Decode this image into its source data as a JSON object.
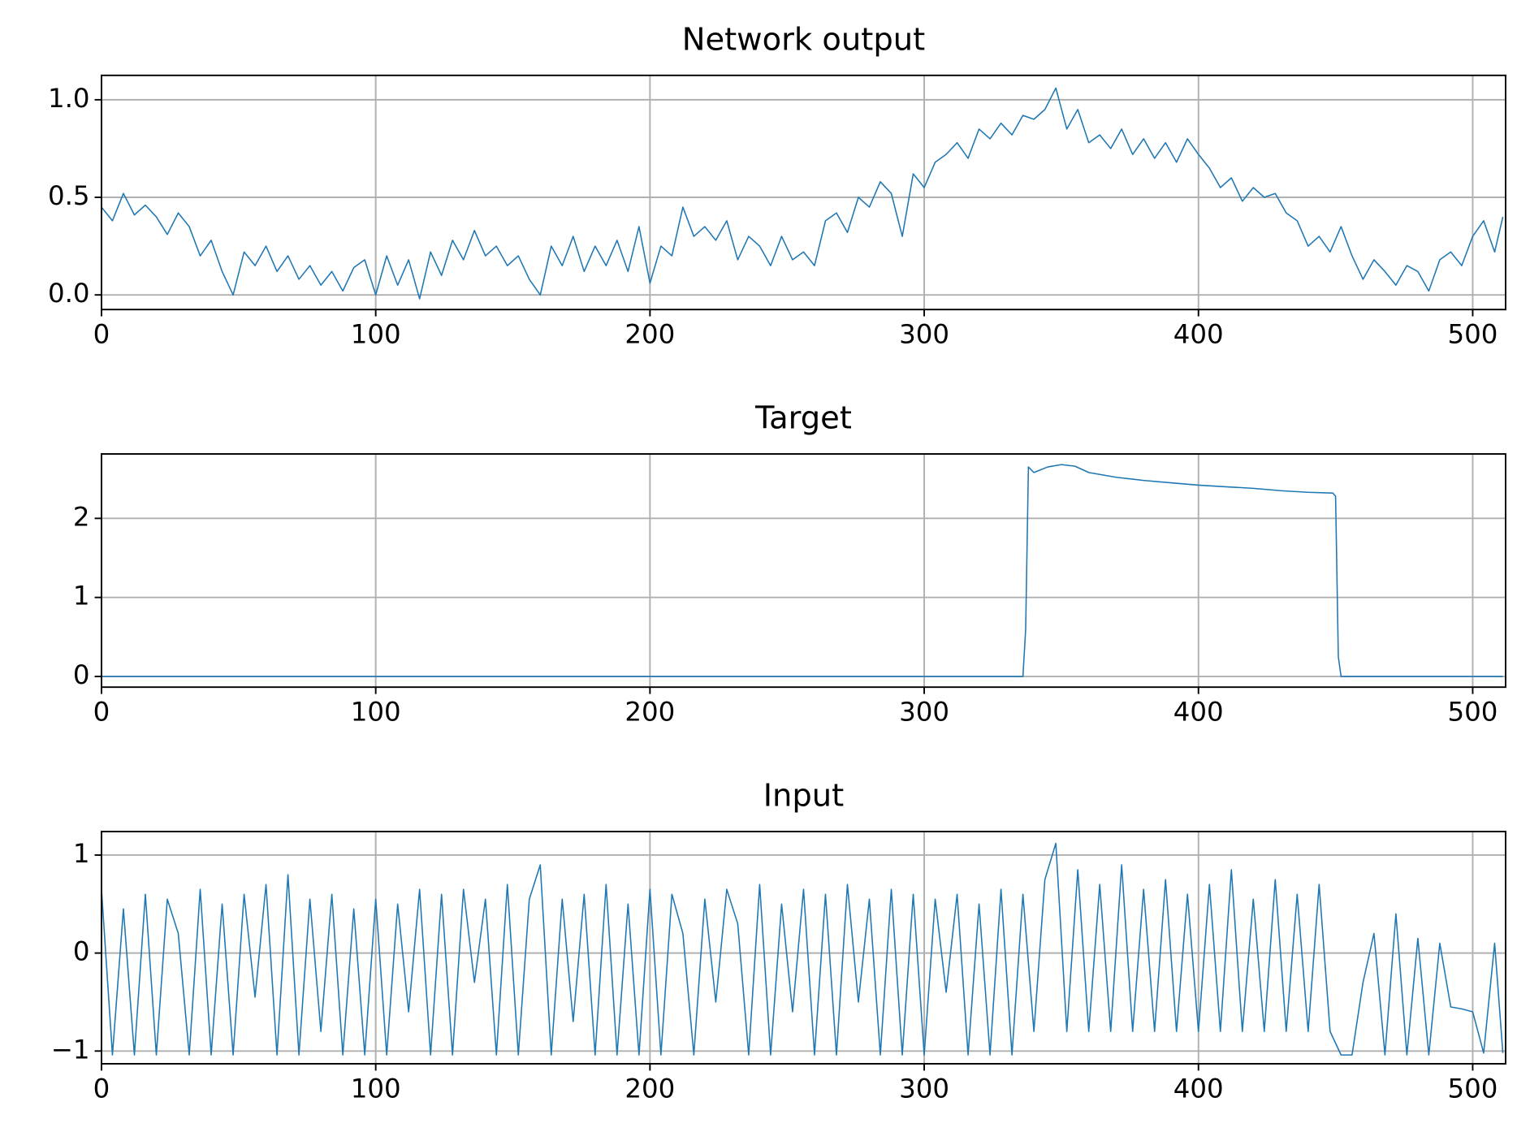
{
  "chart_data": [
    {
      "type": "line",
      "title": "Network output",
      "color": "#1f77b4",
      "grid": true,
      "xlim": [
        0,
        512
      ],
      "xticks": [
        0,
        100,
        200,
        300,
        400,
        500
      ],
      "ylim": [
        -0.075,
        1.125
      ],
      "yticks": [
        {
          "value": 0,
          "label": "0.0"
        },
        {
          "value": 0.5,
          "label": "0.5"
        },
        {
          "value": 1,
          "label": "1.0"
        }
      ],
      "x": [
        0,
        4,
        8,
        12,
        16,
        20,
        24,
        28,
        32,
        36,
        40,
        44,
        48,
        52,
        56,
        60,
        64,
        68,
        72,
        76,
        80,
        84,
        88,
        92,
        96,
        100,
        104,
        108,
        112,
        116,
        120,
        124,
        128,
        132,
        136,
        140,
        144,
        148,
        152,
        156,
        160,
        164,
        168,
        172,
        176,
        180,
        184,
        188,
        192,
        196,
        200,
        204,
        208,
        212,
        216,
        220,
        224,
        228,
        232,
        236,
        240,
        244,
        248,
        252,
        256,
        260,
        264,
        268,
        272,
        276,
        280,
        284,
        288,
        292,
        296,
        300,
        304,
        308,
        312,
        316,
        320,
        324,
        328,
        332,
        336,
        340,
        344,
        348,
        352,
        356,
        360,
        364,
        368,
        372,
        376,
        380,
        384,
        388,
        392,
        396,
        400,
        404,
        408,
        412,
        416,
        420,
        424,
        428,
        432,
        436,
        440,
        444,
        448,
        452,
        456,
        460,
        464,
        468,
        472,
        476,
        480,
        484,
        488,
        492,
        496,
        500,
        504,
        508,
        511
      ],
      "values": [
        0.45,
        0.38,
        0.52,
        0.41,
        0.46,
        0.4,
        0.31,
        0.42,
        0.35,
        0.2,
        0.28,
        0.12,
        0.0,
        0.22,
        0.15,
        0.25,
        0.12,
        0.2,
        0.08,
        0.15,
        0.05,
        0.12,
        0.02,
        0.14,
        0.18,
        0.0,
        0.2,
        0.05,
        0.18,
        -0.02,
        0.22,
        0.1,
        0.28,
        0.18,
        0.33,
        0.2,
        0.25,
        0.15,
        0.2,
        0.08,
        0.0,
        0.25,
        0.15,
        0.3,
        0.12,
        0.25,
        0.15,
        0.28,
        0.12,
        0.35,
        0.06,
        0.25,
        0.2,
        0.45,
        0.3,
        0.35,
        0.28,
        0.38,
        0.18,
        0.3,
        0.25,
        0.15,
        0.3,
        0.18,
        0.22,
        0.15,
        0.38,
        0.42,
        0.32,
        0.5,
        0.45,
        0.58,
        0.52,
        0.3,
        0.62,
        0.55,
        0.68,
        0.72,
        0.78,
        0.7,
        0.85,
        0.8,
        0.88,
        0.82,
        0.92,
        0.9,
        0.95,
        1.06,
        0.85,
        0.95,
        0.78,
        0.82,
        0.75,
        0.85,
        0.72,
        0.8,
        0.7,
        0.78,
        0.68,
        0.8,
        0.72,
        0.65,
        0.55,
        0.6,
        0.48,
        0.55,
        0.5,
        0.52,
        0.42,
        0.38,
        0.25,
        0.3,
        0.22,
        0.35,
        0.2,
        0.08,
        0.18,
        0.12,
        0.05,
        0.15,
        0.12,
        0.02,
        0.18,
        0.22,
        0.15,
        0.3,
        0.38,
        0.22,
        0.4
      ]
    },
    {
      "type": "line",
      "title": "Target",
      "color": "#1f77b4",
      "grid": true,
      "xlim": [
        0,
        512
      ],
      "xticks": [
        0,
        100,
        200,
        300,
        400,
        500
      ],
      "ylim": [
        -0.135,
        2.815
      ],
      "yticks": [
        0,
        1,
        2
      ],
      "x": [
        0,
        336,
        337,
        338,
        340,
        345,
        350,
        355,
        360,
        370,
        380,
        390,
        400,
        410,
        420,
        430,
        440,
        449,
        450,
        451,
        452,
        511
      ],
      "values": [
        0,
        0,
        0.6,
        2.65,
        2.58,
        2.65,
        2.68,
        2.66,
        2.58,
        2.52,
        2.48,
        2.45,
        2.42,
        2.4,
        2.38,
        2.35,
        2.33,
        2.32,
        2.28,
        0.25,
        0,
        0
      ]
    },
    {
      "type": "line",
      "title": "Input",
      "color": "#1f77b4",
      "grid": true,
      "xlim": [
        0,
        512
      ],
      "xticks": [
        0,
        100,
        200,
        300,
        400,
        500
      ],
      "ylim": [
        -1.13,
        1.24
      ],
      "yticks": [
        {
          "value": -1,
          "label": "−1"
        },
        0,
        1
      ],
      "x": [
        0,
        4,
        8,
        12,
        16,
        20,
        24,
        28,
        32,
        36,
        40,
        44,
        48,
        52,
        56,
        60,
        64,
        68,
        72,
        76,
        80,
        84,
        88,
        92,
        96,
        100,
        104,
        108,
        112,
        116,
        120,
        124,
        128,
        132,
        136,
        140,
        144,
        148,
        152,
        156,
        160,
        164,
        168,
        172,
        176,
        180,
        184,
        188,
        192,
        196,
        200,
        204,
        208,
        212,
        216,
        220,
        224,
        228,
        232,
        236,
        240,
        244,
        248,
        252,
        256,
        260,
        264,
        268,
        272,
        276,
        280,
        284,
        288,
        292,
        296,
        300,
        304,
        308,
        312,
        316,
        320,
        324,
        328,
        332,
        336,
        340,
        344,
        348,
        352,
        356,
        360,
        364,
        368,
        372,
        376,
        380,
        384,
        388,
        392,
        396,
        400,
        404,
        408,
        412,
        416,
        420,
        424,
        428,
        432,
        436,
        440,
        444,
        448,
        452,
        456,
        460,
        464,
        468,
        472,
        476,
        480,
        484,
        488,
        492,
        496,
        500,
        504,
        508,
        511
      ],
      "values": [
        0.65,
        -1.04,
        0.45,
        -1.04,
        0.6,
        -1.04,
        0.55,
        0.2,
        -1.04,
        0.65,
        -1.04,
        0.5,
        -1.04,
        0.6,
        -0.45,
        0.7,
        -1.04,
        0.8,
        -1.04,
        0.55,
        -0.8,
        0.6,
        -1.04,
        0.45,
        -1.04,
        0.55,
        -1.04,
        0.5,
        -0.6,
        0.65,
        -1.04,
        0.6,
        -1.04,
        0.65,
        -0.3,
        0.55,
        -1.04,
        0.7,
        -1.04,
        0.55,
        0.9,
        -1.04,
        0.55,
        -0.7,
        0.6,
        -1.04,
        0.7,
        -1.04,
        0.5,
        -1.04,
        0.65,
        -1.04,
        0.6,
        0.2,
        -1.04,
        0.55,
        -0.5,
        0.65,
        0.3,
        -1.04,
        0.7,
        -1.04,
        0.5,
        -0.6,
        0.65,
        -1.04,
        0.6,
        -1.04,
        0.7,
        -0.5,
        0.55,
        -1.04,
        0.65,
        -1.04,
        0.6,
        -1.04,
        0.55,
        -0.4,
        0.6,
        -1.04,
        0.5,
        -1.04,
        0.65,
        -1.04,
        0.6,
        -0.8,
        0.75,
        1.12,
        -0.8,
        0.85,
        -0.8,
        0.7,
        -0.8,
        0.9,
        -0.8,
        0.65,
        -0.8,
        0.75,
        -0.8,
        0.6,
        -0.8,
        0.7,
        -0.8,
        0.85,
        -0.8,
        0.55,
        -0.8,
        0.75,
        -0.8,
        0.6,
        -0.8,
        0.7,
        -0.8,
        -1.04,
        -1.04,
        -0.3,
        0.2,
        -1.04,
        0.4,
        -1.04,
        0.15,
        -1.04,
        0.1,
        -0.55,
        -0.57,
        -0.6,
        -1.02,
        0.1,
        -1.02
      ]
    }
  ]
}
